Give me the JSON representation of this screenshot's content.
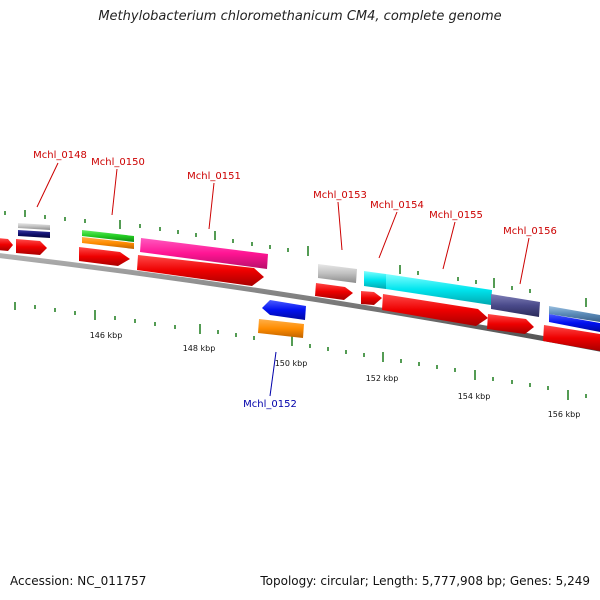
{
  "title": "Methylobacterium chloromethanicum CM4, complete genome",
  "footer": {
    "accession": "Accession: NC_011757",
    "topology": "Topology: circular; Length: 5,777,908 bp; Genes: 5,249"
  },
  "colors": {
    "backbone": "#808080",
    "forward_label": "#cc0000",
    "reverse_label": "#0000aa",
    "tick": "#1a7a1a",
    "cds": "#ee0000"
  },
  "genes": [
    {
      "label": "Mchl_0148",
      "strand": "forward"
    },
    {
      "label": "Mchl_0150",
      "strand": "forward"
    },
    {
      "label": "Mchl_0151",
      "strand": "forward"
    },
    {
      "label": "Mchl_0153",
      "strand": "forward"
    },
    {
      "label": "Mchl_0154",
      "strand": "forward"
    },
    {
      "label": "Mchl_0155",
      "strand": "forward"
    },
    {
      "label": "Mchl_0156",
      "strand": "forward"
    },
    {
      "label": "Mchl_0152",
      "strand": "reverse"
    }
  ],
  "scale_labels": [
    "146 kbp",
    "148 kbp",
    "150 kbp",
    "152 kbp",
    "154 kbp",
    "156 kbp"
  ]
}
